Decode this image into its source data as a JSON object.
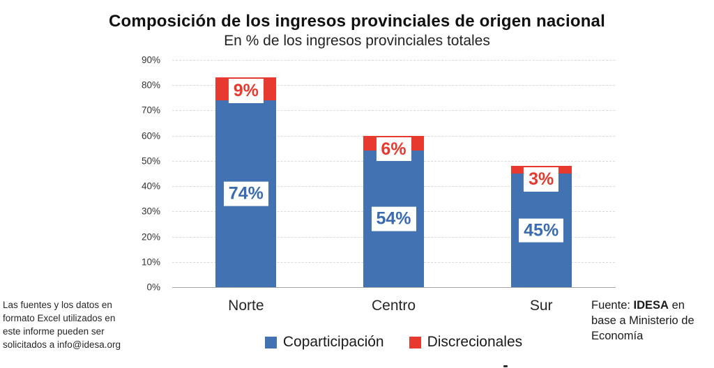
{
  "chart_data": {
    "type": "bar",
    "stacked": true,
    "title": "Composición de los ingresos provinciales de origen nacional",
    "subtitle": "En % de los ingresos provinciales totales",
    "categories": [
      "Norte",
      "Centro",
      "Sur"
    ],
    "series": [
      {
        "name": "Coparticipación",
        "color": "#4272B2",
        "label_color": "#3A6BB1",
        "values": [
          74,
          54,
          45
        ],
        "labels": [
          "74%",
          "54%",
          "45%"
        ]
      },
      {
        "name": "Discrecionales",
        "color": "#E8392E",
        "label_color": "#E8392E",
        "values": [
          9,
          6,
          3
        ],
        "labels": [
          "9%",
          "6%",
          "3%"
        ]
      }
    ],
    "totals": [
      83,
      60,
      48
    ],
    "ylim": [
      0,
      90
    ],
    "ytick_step": 10,
    "ytick_labels": [
      "0%",
      "10%",
      "20%",
      "30%",
      "40%",
      "50%",
      "60%",
      "70%",
      "80%",
      "90%"
    ],
    "grid": "horizontal-dashed",
    "legend_position": "bottom-center"
  },
  "footnote": {
    "text": "Las fuentes y los datos en\nformato Excel utilizados en\neste informe pueden ser\nsolicitados a info@idesa.org"
  },
  "source": {
    "prefix": "Fuente: ",
    "org": "IDESA",
    "suffix": " en base a Ministerio de Economía"
  },
  "colors": {
    "coparticipacion": "#4272B2",
    "discrecionales": "#E8392E",
    "gridline": "#D9D9D9",
    "axis_line": "#A6A6A6",
    "text": "#262626"
  }
}
